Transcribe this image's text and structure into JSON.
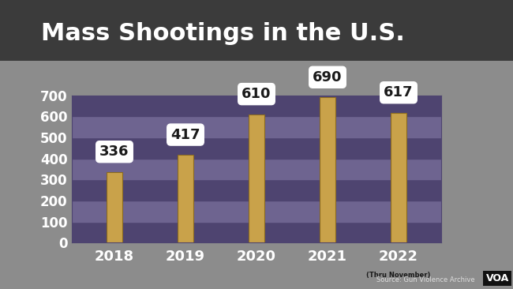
{
  "chart_data": {
    "type": "bar",
    "title": "Mass Shootings in the U.S.",
    "categories": [
      "2018",
      "2019",
      "2020",
      "2021",
      "2022"
    ],
    "values": [
      336,
      417,
      610,
      690,
      617
    ],
    "color": "#c9a24a",
    "ylim": [
      0,
      700
    ],
    "yticks": [
      0,
      100,
      200,
      300,
      400,
      500,
      600,
      700
    ],
    "grid": true,
    "data_labels": true,
    "category_note": {
      "category": "2022",
      "text": "(Thru November)"
    },
    "source": "Source: Gun Violence Archive",
    "logo": "VOA"
  }
}
